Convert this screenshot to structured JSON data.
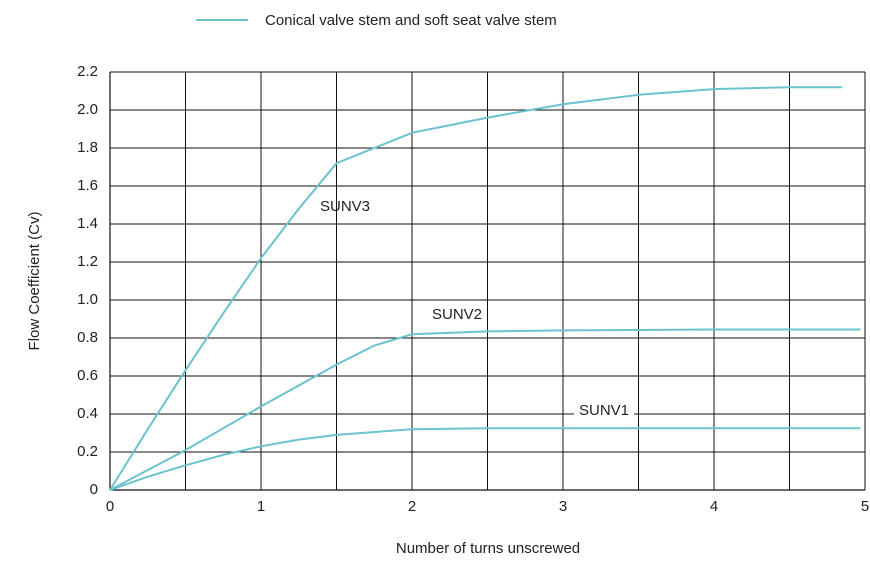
{
  "chart_data": {
    "type": "line",
    "legend": "Conical valve stem and soft seat valve stem",
    "xlabel": "Number of turns unscrewed",
    "ylabel": "Flow Coefficient (Cv)",
    "color": "#6cc2cd",
    "series": [
      {
        "name": "SUNV1",
        "x": [
          0,
          0.25,
          0.5,
          0.75,
          1,
          1.25,
          1.5,
          2,
          2.5,
          3,
          4,
          4.97
        ],
        "values": [
          0,
          0.07,
          0.13,
          0.185,
          0.23,
          0.265,
          0.29,
          0.32,
          0.325,
          0.325,
          0.325,
          0.325
        ]
      },
      {
        "name": "SUNV2",
        "x": [
          0,
          0.5,
          1,
          1.5,
          1.75,
          2,
          2.5,
          3,
          4,
          4.97
        ],
        "values": [
          0,
          0.21,
          0.44,
          0.66,
          0.76,
          0.82,
          0.835,
          0.84,
          0.845,
          0.845
        ]
      },
      {
        "name": "SUNV3",
        "x": [
          0,
          0.25,
          0.5,
          0.75,
          1,
          1.25,
          1.5,
          1.75,
          2,
          2.5,
          3,
          3.5,
          4,
          4.5,
          4.85
        ],
        "values": [
          0,
          0.32,
          0.63,
          0.93,
          1.22,
          1.48,
          1.72,
          1.8,
          1.88,
          1.96,
          2.03,
          2.08,
          2.11,
          2.12,
          2.12
        ]
      }
    ],
    "xlim": [
      0,
      5
    ],
    "xticks": [
      0,
      1,
      2,
      3,
      4,
      5
    ],
    "xgrid": [
      0.5,
      1,
      1.5,
      2,
      2.5,
      3,
      3.5,
      4,
      4.5,
      5
    ],
    "ylim": [
      0,
      2.2
    ],
    "yticks": [
      0,
      0.2,
      0.4,
      0.6,
      0.8,
      {
        "value": 1,
        "label": "1.0"
      },
      1.2,
      1.4,
      1.6,
      1.8,
      {
        "value": 2,
        "label": "2.0"
      },
      2.2
    ],
    "grid": true
  }
}
